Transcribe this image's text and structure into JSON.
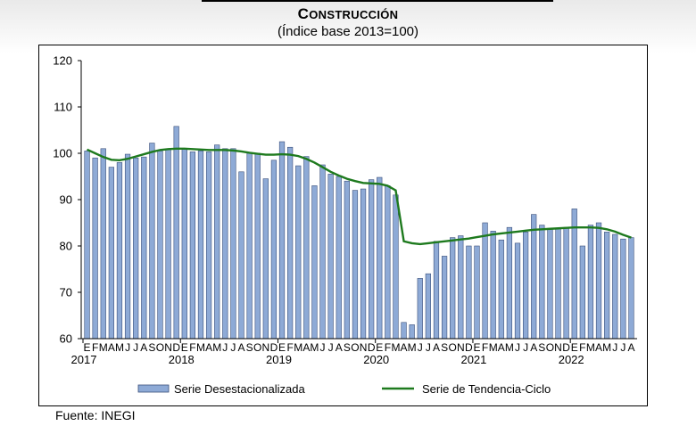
{
  "header": {
    "title": "CONSTRUCCIÓN",
    "subtitle": "(Índice base 2013=100)"
  },
  "footer": {
    "source": "Fuente: INEGI"
  },
  "colors": {
    "bar_fill": "#8eaad6",
    "bar_stroke": "#3a4f7a",
    "trend_line": "#1e7a1e"
  },
  "chart_data": {
    "type": "bar",
    "title": "CONSTRUCCIÓN",
    "subtitle": "(Índice base 2013=100)",
    "xlabel": "",
    "ylabel": "",
    "ylim": [
      60,
      120
    ],
    "yticks": [
      60,
      70,
      80,
      90,
      100,
      110,
      120
    ],
    "grid": false,
    "legend": "bottom",
    "years": [
      "2017",
      "2018",
      "2019",
      "2020",
      "2021",
      "2022"
    ],
    "month_labels": [
      "E",
      "F",
      "M",
      "A",
      "M",
      "J",
      "J",
      "A",
      "S",
      "O",
      "N",
      "D",
      "E",
      "F",
      "M",
      "A",
      "M",
      "J",
      "J",
      "A",
      "S",
      "O",
      "N",
      "D",
      "E",
      "F",
      "M",
      "A",
      "M",
      "J",
      "J",
      "A",
      "S",
      "O",
      "N",
      "D",
      "E",
      "F",
      "M",
      "A",
      "M",
      "J",
      "J",
      "A",
      "S",
      "O",
      "N",
      "D",
      "E",
      "F",
      "M",
      "A",
      "M",
      "J",
      "J",
      "A",
      "S",
      "O",
      "N",
      "D",
      "E",
      "F",
      "M",
      "A",
      "M",
      "J",
      "J",
      "A"
    ],
    "series": [
      {
        "name": "Serie Desestacionalizada",
        "type": "bar",
        "values": [
          100.5,
          99.0,
          101.0,
          97.0,
          98.0,
          99.8,
          99.0,
          99.2,
          102.2,
          100.5,
          101.0,
          105.8,
          101.0,
          100.3,
          100.5,
          100.3,
          101.8,
          101.0,
          101.0,
          96.0,
          100.0,
          100.0,
          94.5,
          98.5,
          102.5,
          101.3,
          97.3,
          99.3,
          93.0,
          97.5,
          95.5,
          95.0,
          94.0,
          92.0,
          92.3,
          94.3,
          94.8,
          93.0,
          91.0,
          63.5,
          63.0,
          73.0,
          74.0,
          81.0,
          77.8,
          81.8,
          82.2,
          80.0,
          80.0,
          85.0,
          83.2,
          81.3,
          84.0,
          80.6,
          83.0,
          86.8,
          84.5,
          83.8,
          83.8,
          84.0,
          88.0,
          80.0,
          84.5,
          85.0,
          83.0,
          82.5,
          81.5,
          81.8
        ]
      },
      {
        "name": "Serie de Tendencia-Ciclo",
        "type": "line",
        "values": [
          100.8,
          100.0,
          99.2,
          98.6,
          98.5,
          98.8,
          99.3,
          99.8,
          100.3,
          100.7,
          100.9,
          101.0,
          101.0,
          100.9,
          100.8,
          100.7,
          100.7,
          100.7,
          100.6,
          100.4,
          100.1,
          99.9,
          99.7,
          99.7,
          99.8,
          99.7,
          99.4,
          98.8,
          98.0,
          97.0,
          96.0,
          95.2,
          94.5,
          94.0,
          93.6,
          93.5,
          93.4,
          93.0,
          92.0,
          81.0,
          80.6,
          80.4,
          80.6,
          80.8,
          81.0,
          81.2,
          81.4,
          81.6,
          81.9,
          82.2,
          82.5,
          82.7,
          82.9,
          83.1,
          83.3,
          83.5,
          83.6,
          83.7,
          83.8,
          83.9,
          84.0,
          84.0,
          84.0,
          83.9,
          83.6,
          83.1,
          82.4,
          81.8
        ]
      }
    ]
  }
}
